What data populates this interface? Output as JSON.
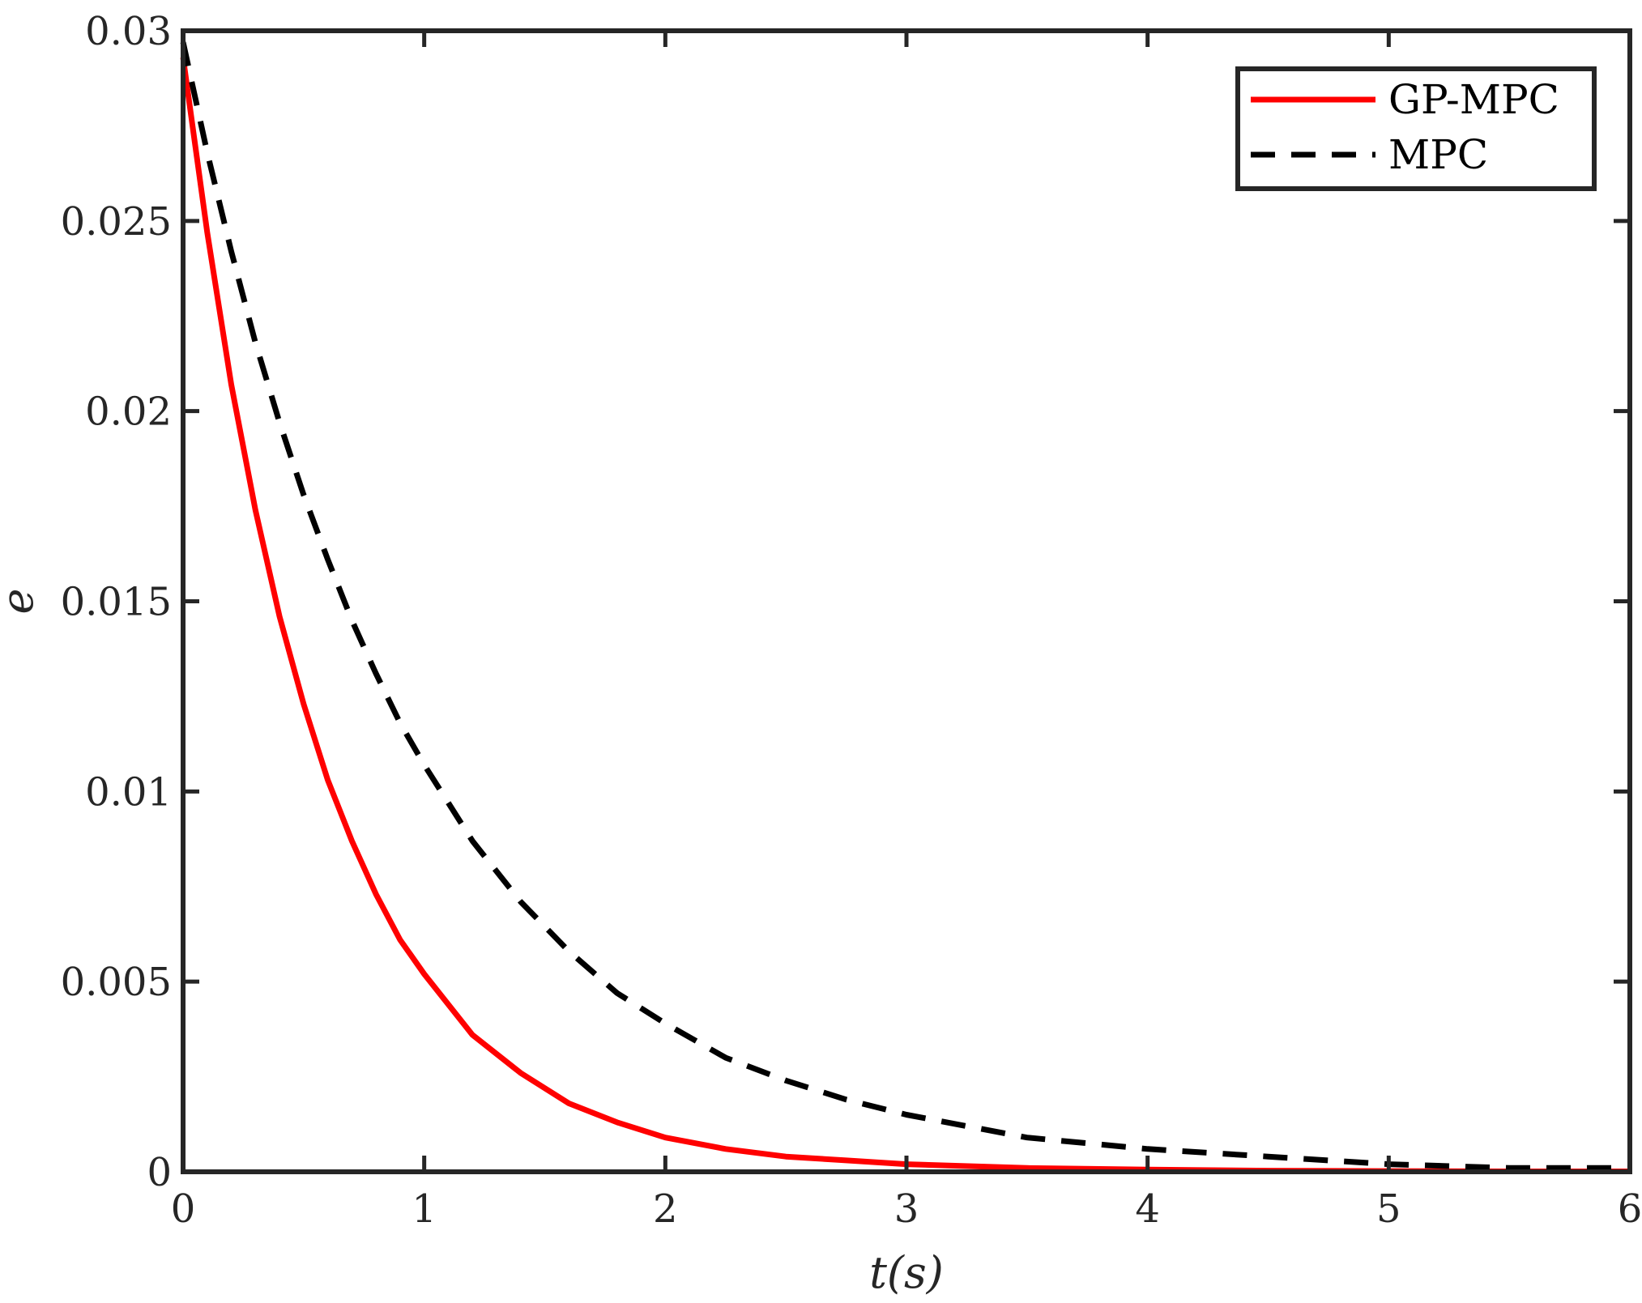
{
  "chart_data": {
    "type": "line",
    "xlabel": "t(s)",
    "ylabel": "e",
    "xlim": [
      0,
      6
    ],
    "ylim": [
      0,
      0.03
    ],
    "x_ticks": [
      0,
      1,
      2,
      3,
      4,
      5,
      6
    ],
    "x_tick_labels": [
      "0",
      "1",
      "2",
      "3",
      "4",
      "5",
      "6"
    ],
    "y_ticks": [
      0,
      0.005,
      0.01,
      0.015,
      0.02,
      0.025,
      0.03
    ],
    "y_tick_labels": [
      "0",
      "0.005",
      "0.01",
      "0.015",
      "0.02",
      "0.025",
      "0.03"
    ],
    "grid": false,
    "legend_position": "top-right",
    "series": [
      {
        "name": "GP-MPC",
        "color": "#ff0000",
        "style": "solid",
        "x": [
          0,
          0.1,
          0.2,
          0.3,
          0.4,
          0.5,
          0.6,
          0.7,
          0.8,
          0.9,
          1.0,
          1.2,
          1.4,
          1.6,
          1.8,
          2.0,
          2.25,
          2.5,
          2.75,
          3.0,
          3.5,
          4.0,
          4.5,
          5.0,
          5.5,
          6.0
        ],
        "y": [
          0.0293,
          0.0247,
          0.0207,
          0.0174,
          0.0146,
          0.0123,
          0.0103,
          0.0087,
          0.0073,
          0.0061,
          0.0052,
          0.0036,
          0.0026,
          0.0018,
          0.0013,
          0.0009,
          0.0006,
          0.0004,
          0.0003,
          0.0002,
          0.0001,
          6e-05,
          3e-05,
          2e-05,
          1e-05,
          1e-05
        ]
      },
      {
        "name": "MPC",
        "color": "#000000",
        "style": "dashed",
        "x": [
          0,
          0.1,
          0.2,
          0.3,
          0.4,
          0.5,
          0.6,
          0.7,
          0.8,
          0.9,
          1.0,
          1.2,
          1.4,
          1.6,
          1.8,
          2.0,
          2.25,
          2.5,
          2.75,
          3.0,
          3.5,
          4.0,
          4.5,
          5.0,
          5.5,
          6.0
        ],
        "y": [
          0.0297,
          0.0268,
          0.0242,
          0.0218,
          0.0197,
          0.0178,
          0.0161,
          0.0145,
          0.0131,
          0.0118,
          0.0107,
          0.0087,
          0.0071,
          0.0058,
          0.0047,
          0.0039,
          0.003,
          0.0024,
          0.0019,
          0.0015,
          0.0009,
          0.0006,
          0.0004,
          0.0002,
          0.0001,
          0.0001
        ]
      }
    ]
  }
}
